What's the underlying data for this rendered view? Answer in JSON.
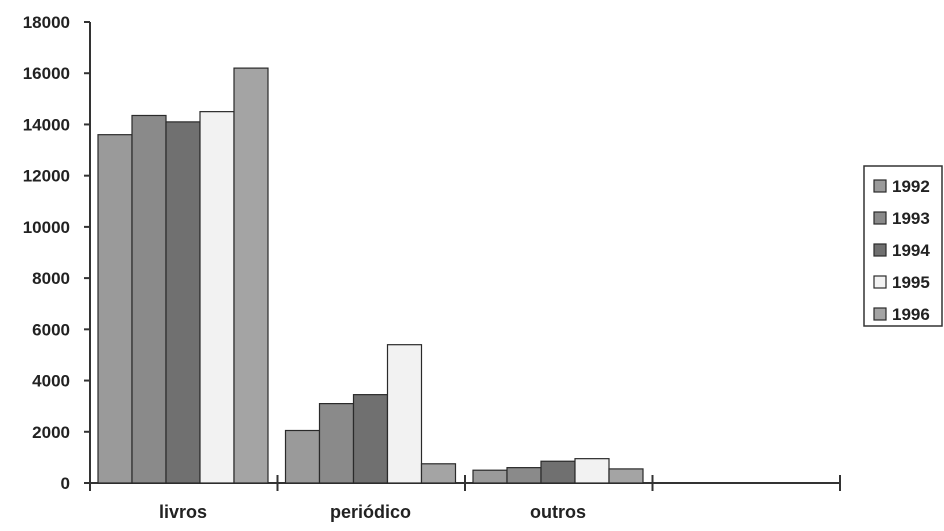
{
  "chart_data": {
    "type": "bar",
    "title": "",
    "xlabel": "",
    "ylabel": "",
    "ylim": [
      0,
      18000
    ],
    "yticks": [
      0,
      2000,
      4000,
      6000,
      8000,
      10000,
      12000,
      14000,
      16000,
      18000
    ],
    "grid": false,
    "legend_position": "right",
    "categories": [
      "livros",
      "periódico",
      "outros"
    ],
    "series": [
      {
        "name": "1992",
        "color": "#9a9a9a",
        "values": [
          13600,
          2050,
          500
        ]
      },
      {
        "name": "1993",
        "color": "#8a8a8a",
        "values": [
          14350,
          3100,
          600
        ]
      },
      {
        "name": "1994",
        "color": "#707070",
        "values": [
          14100,
          3450,
          850
        ]
      },
      {
        "name": "1995",
        "color": "#f2f2f2",
        "values": [
          14500,
          5400,
          950
        ]
      },
      {
        "name": "1996",
        "color": "#a4a4a4",
        "values": [
          16200,
          750,
          550
        ]
      }
    ]
  }
}
